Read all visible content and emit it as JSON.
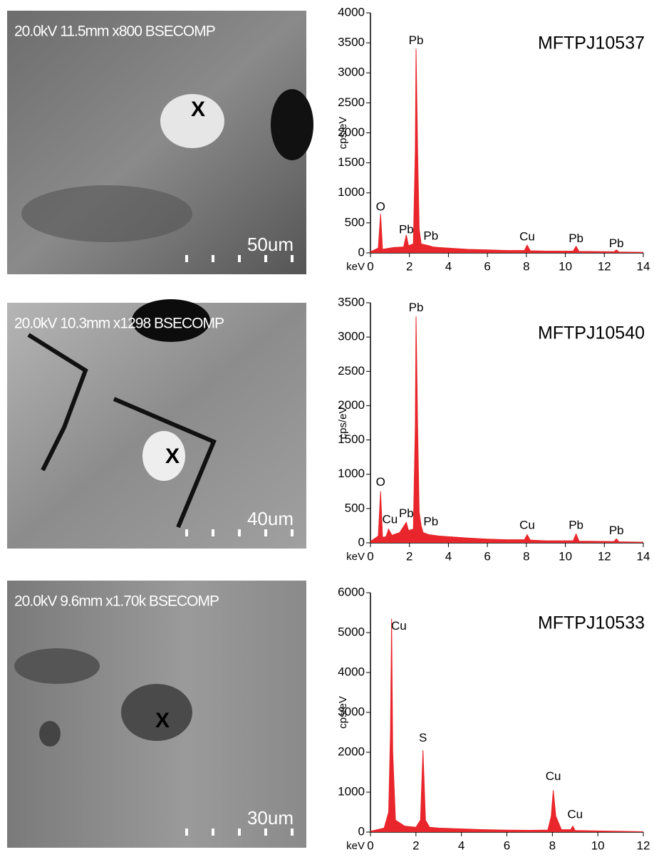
{
  "images": [
    {
      "caption": "20.0kV 11.5mm x800 BSECOMP",
      "marker": "X",
      "scale_label": "50um"
    },
    {
      "caption": "20.0kV 10.3mm x1298 BSECOMP",
      "marker": "X",
      "scale_label": "40um"
    },
    {
      "caption": "20.0kV 9.6mm x1.70k BSECOMP",
      "marker": "X",
      "scale_label": "30um"
    }
  ],
  "chart_data": [
    {
      "type": "area",
      "title": "MFTPJ10537",
      "y_label": "cps/eV",
      "x_label": "keV",
      "color": "#e8262b",
      "xlim": [
        0,
        14
      ],
      "xticks": [
        0,
        2,
        4,
        6,
        8,
        10,
        12,
        14
      ],
      "ylim": [
        0,
        4000
      ],
      "yticks": [
        0,
        500,
        1000,
        1500,
        2000,
        2500,
        3000,
        3500,
        4000
      ],
      "x": [
        0,
        0.2,
        0.4,
        0.52,
        0.62,
        0.8,
        1.2,
        1.7,
        1.84,
        1.95,
        2.2,
        2.3,
        2.34,
        2.42,
        2.5,
        2.6,
        3.0,
        3.2,
        3.5,
        4,
        5,
        6,
        7,
        7.9,
        8.04,
        8.2,
        9,
        10.4,
        10.55,
        10.7,
        12.5,
        12.62,
        12.75,
        14
      ],
      "values": [
        20,
        50,
        80,
        650,
        60,
        70,
        90,
        100,
        300,
        120,
        150,
        1700,
        3400,
        1700,
        400,
        150,
        120,
        100,
        90,
        80,
        60,
        50,
        40,
        40,
        130,
        35,
        30,
        30,
        110,
        25,
        20,
        50,
        15,
        10
      ],
      "annotations": [
        {
          "text": "O",
          "x": 0.52,
          "y": 760
        },
        {
          "text": "Pb",
          "x": 1.84,
          "y": 380
        },
        {
          "text": "Pb",
          "x": 2.34,
          "y": 3530
        },
        {
          "text": "Pb",
          "x": 3.1,
          "y": 270
        },
        {
          "text": "Cu",
          "x": 8.04,
          "y": 260
        },
        {
          "text": "Pb",
          "x": 10.55,
          "y": 230
        },
        {
          "text": "Pb",
          "x": 12.62,
          "y": 150
        }
      ]
    },
    {
      "type": "area",
      "title": "MFTPJ10540",
      "y_label": "cps/eV",
      "x_label": "keV",
      "color": "#e8262b",
      "xlim": [
        0,
        14
      ],
      "xticks": [
        0,
        2,
        4,
        6,
        8,
        10,
        12,
        14
      ],
      "ylim": [
        0,
        3500
      ],
      "yticks": [
        0,
        500,
        1000,
        1500,
        2000,
        2500,
        3000,
        3500
      ],
      "x": [
        0,
        0.2,
        0.4,
        0.52,
        0.62,
        0.8,
        0.93,
        1.1,
        1.5,
        1.84,
        1.95,
        2.2,
        2.3,
        2.34,
        2.42,
        2.5,
        2.6,
        2.7,
        3.0,
        3.5,
        4,
        5,
        6,
        7,
        7.9,
        8.04,
        8.2,
        9,
        10.4,
        10.55,
        10.7,
        12.5,
        12.62,
        12.75,
        14
      ],
      "values": [
        20,
        60,
        100,
        750,
        80,
        90,
        200,
        110,
        150,
        300,
        180,
        200,
        1700,
        3300,
        1700,
        450,
        250,
        150,
        120,
        100,
        90,
        70,
        55,
        45,
        45,
        120,
        40,
        30,
        30,
        130,
        25,
        20,
        60,
        15,
        10
      ],
      "annotations": [
        {
          "text": "O",
          "x": 0.52,
          "y": 880
        },
        {
          "text": "Cu",
          "x": 1.0,
          "y": 330
        },
        {
          "text": "Pb",
          "x": 1.84,
          "y": 420
        },
        {
          "text": "Pb",
          "x": 2.34,
          "y": 3420
        },
        {
          "text": "Pb",
          "x": 3.1,
          "y": 300
        },
        {
          "text": "Cu",
          "x": 8.04,
          "y": 250
        },
        {
          "text": "Pb",
          "x": 10.55,
          "y": 250
        },
        {
          "text": "Pb",
          "x": 12.62,
          "y": 170
        }
      ]
    },
    {
      "type": "area",
      "title": "MFTPJ10533",
      "y_label": "cps/eV",
      "x_label": "keV",
      "color": "#e8262b",
      "xlim": [
        0,
        12
      ],
      "xticks": [
        0,
        2,
        4,
        6,
        8,
        10,
        12
      ],
      "ylim": [
        0,
        6000
      ],
      "yticks": [
        0,
        1000,
        2000,
        3000,
        4000,
        5000,
        6000
      ],
      "x": [
        0,
        0.3,
        0.6,
        0.8,
        0.88,
        0.93,
        0.98,
        1.1,
        1.5,
        2.0,
        2.2,
        2.31,
        2.42,
        2.6,
        3,
        4,
        5,
        6,
        7,
        7.8,
        7.95,
        8.04,
        8.15,
        8.4,
        8.8,
        8.9,
        9.0,
        10,
        11,
        12
      ],
      "values": [
        20,
        60,
        100,
        500,
        2500,
        5350,
        2000,
        300,
        150,
        120,
        300,
        2050,
        300,
        120,
        100,
        80,
        60,
        50,
        45,
        50,
        400,
        1050,
        400,
        60,
        60,
        150,
        40,
        30,
        20,
        10
      ],
      "annotations": [
        {
          "text": "Cu",
          "x": 1.25,
          "y": 5150
        },
        {
          "text": "S",
          "x": 2.31,
          "y": 2350
        },
        {
          "text": "Cu",
          "x": 8.04,
          "y": 1380
        },
        {
          "text": "Cu",
          "x": 9.0,
          "y": 430
        }
      ]
    }
  ]
}
